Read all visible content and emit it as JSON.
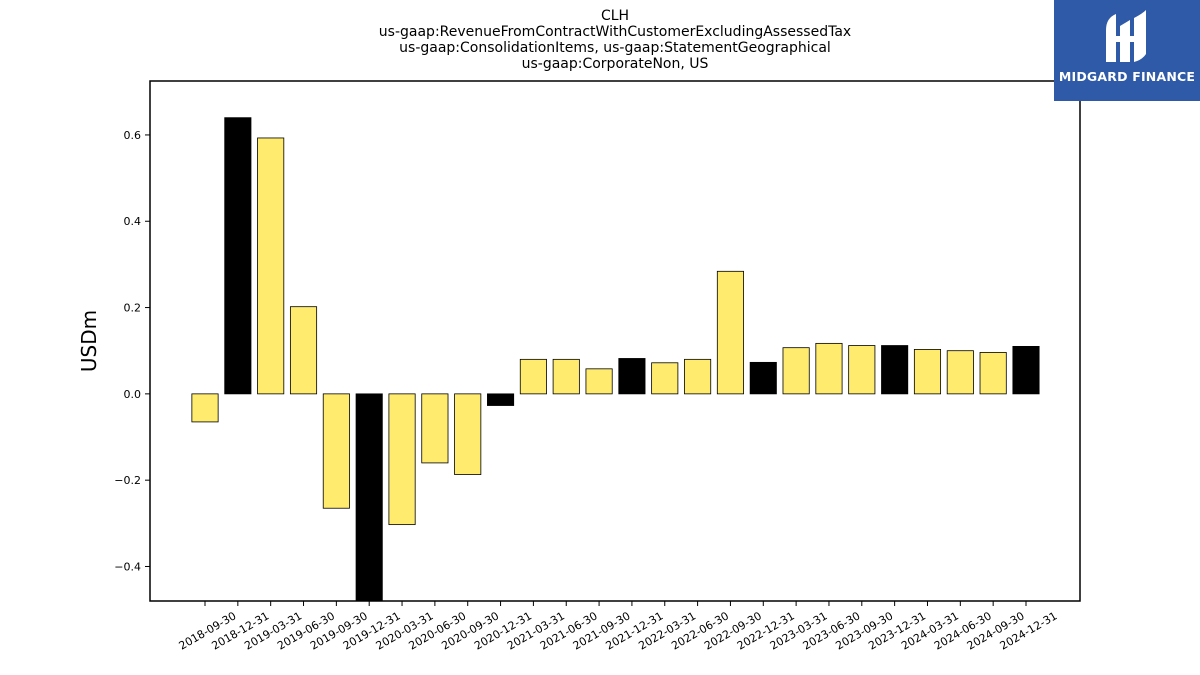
{
  "chart_data": {
    "type": "bar",
    "title_lines": [
      "CLH",
      "us-gaap:RevenueFromContractWithCustomerExcludingAssessedTax",
      "us-gaap:ConsolidationItems, us-gaap:StatementGeographical",
      "us-gaap:CorporateNon, US"
    ],
    "xlabel": "",
    "ylabel": "USDm",
    "ylim": [
      -0.48,
      0.725
    ],
    "yticks": [
      -0.4,
      -0.2,
      0.0,
      0.2,
      0.4,
      0.6
    ],
    "ytick_labels": [
      "−0.4",
      "−0.2",
      "0.0",
      "0.2",
      "0.4",
      "0.6"
    ],
    "categories": [
      "2018-09-30",
      "2018-12-31",
      "2019-03-31",
      "2019-06-30",
      "2019-09-30",
      "2019-12-31",
      "2020-03-31",
      "2020-06-30",
      "2020-09-30",
      "2020-12-31",
      "2021-03-31",
      "2021-06-30",
      "2021-09-30",
      "2021-12-31",
      "2022-03-31",
      "2022-06-30",
      "2022-09-30",
      "2022-12-31",
      "2023-03-31",
      "2023-06-30",
      "2023-09-30",
      "2023-12-31",
      "2024-03-31",
      "2024-06-30",
      "2024-09-30",
      "2024-12-31"
    ],
    "values": [
      -0.065,
      0.64,
      0.593,
      0.202,
      -0.265,
      -0.49,
      -0.303,
      -0.16,
      -0.187,
      -0.027,
      0.08,
      0.08,
      0.058,
      0.082,
      0.072,
      0.08,
      0.284,
      0.073,
      0.107,
      0.117,
      0.112,
      0.112,
      0.103,
      0.1,
      0.096,
      0.11
    ],
    "bar_colors": [
      "#ffec6e",
      "#000000",
      "#ffec6e",
      "#ffec6e",
      "#ffec6e",
      "#000000",
      "#ffec6e",
      "#ffec6e",
      "#ffec6e",
      "#000000",
      "#ffec6e",
      "#ffec6e",
      "#ffec6e",
      "#000000",
      "#ffec6e",
      "#ffec6e",
      "#ffec6e",
      "#000000",
      "#ffec6e",
      "#ffec6e",
      "#ffec6e",
      "#000000",
      "#ffec6e",
      "#ffec6e",
      "#ffec6e",
      "#000000"
    ],
    "grid": false,
    "legend": "none"
  },
  "logo": {
    "text": "MIDGARD FINANCE",
    "background": "#2f5aa8"
  }
}
